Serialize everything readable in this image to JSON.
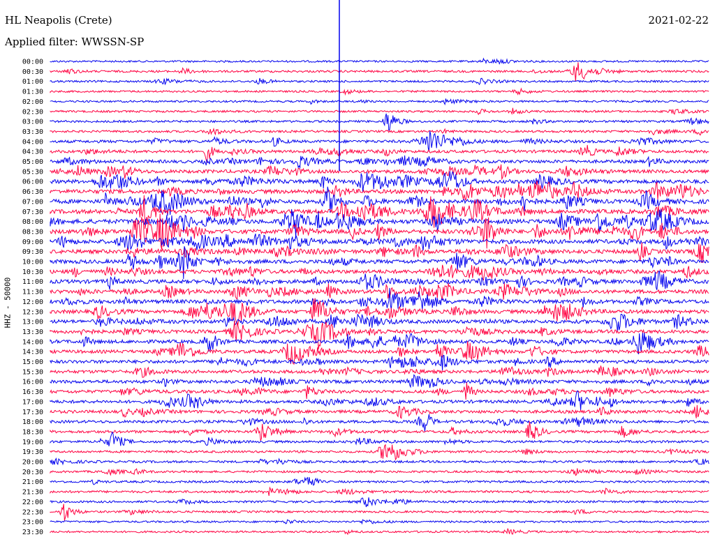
{
  "header": {
    "station": "HL Neapolis (Crete)",
    "filter": "Applied filter: WWSSN-SP",
    "date": "2021-02-22"
  },
  "axis": {
    "ylabel": "HHZ - 50000"
  },
  "colors": {
    "trace_a": "#0000ee",
    "trace_b": "#ff0040"
  },
  "chart_data": {
    "type": "line",
    "title": "HL Neapolis (Crete)",
    "subtitle": "Applied filter: WWSSN-SP",
    "ylabel": "HHZ - 50000",
    "xlabel": "",
    "grid": false,
    "row_labels": [
      "00:00",
      "00:30",
      "01:00",
      "01:30",
      "02:00",
      "02:30",
      "03:00",
      "03:30",
      "04:00",
      "04:30",
      "05:00",
      "05:30",
      "06:00",
      "06:30",
      "07:00",
      "07:30",
      "08:00",
      "08:30",
      "09:00",
      "09:30",
      "10:00",
      "10:30",
      "11:00",
      "11:30",
      "12:00",
      "12:30",
      "13:00",
      "13:30",
      "14:00",
      "14:30",
      "15:00",
      "15:30",
      "16:00",
      "16:30",
      "17:00",
      "17:30",
      "18:00",
      "18:30",
      "19:00",
      "19:30",
      "20:00",
      "20:30",
      "21:00",
      "21:30",
      "22:00",
      "22:30",
      "23:00",
      "23:30"
    ],
    "row_activity": [
      0.05,
      0.12,
      0.08,
      0.06,
      0.07,
      0.1,
      0.12,
      0.15,
      0.3,
      0.35,
      0.4,
      0.5,
      0.6,
      0.65,
      0.7,
      0.7,
      0.75,
      0.72,
      0.7,
      0.65,
      0.62,
      0.6,
      0.6,
      0.58,
      0.58,
      0.55,
      0.55,
      0.5,
      0.5,
      0.45,
      0.45,
      0.42,
      0.45,
      0.42,
      0.4,
      0.38,
      0.3,
      0.28,
      0.2,
      0.15,
      0.15,
      0.12,
      0.12,
      0.15,
      0.12,
      0.08,
      0.06,
      0.06
    ],
    "row_colors": [
      "trace_a",
      "trace_b"
    ],
    "x_minutes_per_row": 30
  }
}
